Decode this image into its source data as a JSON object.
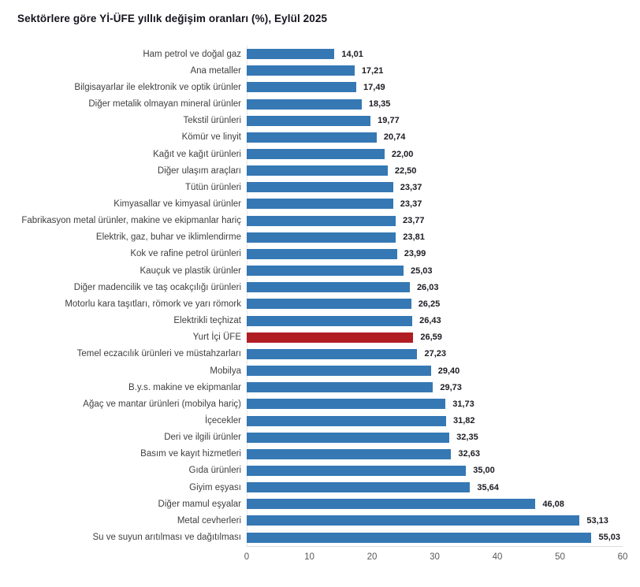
{
  "chart_data": {
    "type": "bar",
    "orientation": "horizontal",
    "title": "Sektörlere göre Yİ-ÜFE yıllık değişim oranları (%), Eylül 2025",
    "categories": [
      "Ham petrol ve doğal gaz",
      "Ana metaller",
      "Bilgisayarlar ile elektronik ve optik ürünler",
      "Diğer metalik olmayan mineral ürünler",
      "Tekstil ürünleri",
      "Kömür ve linyit",
      "Kağıt ve kağıt ürünleri",
      "Diğer ulaşım araçları",
      "Tütün ürünleri",
      "Kimyasallar ve kimyasal ürünler",
      "Fabrikasyon metal ürünler, makine ve ekipmanlar hariç",
      "Elektrik, gaz, buhar ve iklimlendirme",
      "Kok ve rafine petrol ürünleri",
      "Kauçuk ve plastik ürünler",
      "Diğer madencilik ve taş ocakçılığı ürünleri",
      "Motorlu kara taşıtları, römork ve yarı römork",
      "Elektrikli teçhizat",
      "Yurt İçi ÜFE",
      "Temel eczacılık ürünleri ve müstahzarları",
      "Mobilya",
      "B.y.s. makine ve ekipmanlar",
      "Ağaç ve mantar ürünleri (mobilya hariç)",
      "İçecekler",
      "Deri ve ilgili ürünler",
      "Basım ve kayıt hizmetleri",
      "Gıda ürünleri",
      "Giyim eşyası",
      "Diğer mamul eşyalar",
      "Metal cevherleri",
      "Su ve suyun arıtılması ve dağıtılması"
    ],
    "values": [
      14.01,
      17.21,
      17.49,
      18.35,
      19.77,
      20.74,
      22.0,
      22.5,
      23.37,
      23.37,
      23.77,
      23.81,
      23.99,
      25.03,
      26.03,
      26.25,
      26.43,
      26.59,
      27.23,
      29.4,
      29.73,
      31.73,
      31.82,
      32.35,
      32.63,
      35.0,
      35.64,
      46.08,
      53.13,
      55.03
    ],
    "value_labels": [
      "14,01",
      "17,21",
      "17,49",
      "18,35",
      "19,77",
      "20,74",
      "22,00",
      "22,50",
      "23,37",
      "23,37",
      "23,77",
      "23,81",
      "23,99",
      "25,03",
      "26,03",
      "26,25",
      "26,43",
      "26,59",
      "27,23",
      "29,40",
      "29,73",
      "31,73",
      "31,82",
      "32,35",
      "32,63",
      "35,00",
      "35,64",
      "46,08",
      "53,13",
      "55,03"
    ],
    "highlight_category": "Yurt İçi ÜFE",
    "highlight_index": 17,
    "xlim": [
      0,
      60
    ],
    "x_ticks": [
      "0",
      "10",
      "20",
      "30",
      "40",
      "50",
      "60"
    ],
    "grid": false,
    "legend": "none",
    "colors": {
      "bar": "#3578b4",
      "highlight": "#b01e24",
      "axis_line": "#dcdcdc",
      "zero_line": "#e6e6e6",
      "tick_text": "#595959",
      "value_text": "#1b1b22",
      "label_text": "#3f3f3f",
      "title_text": "#15151f",
      "background": "#ffffff"
    }
  }
}
